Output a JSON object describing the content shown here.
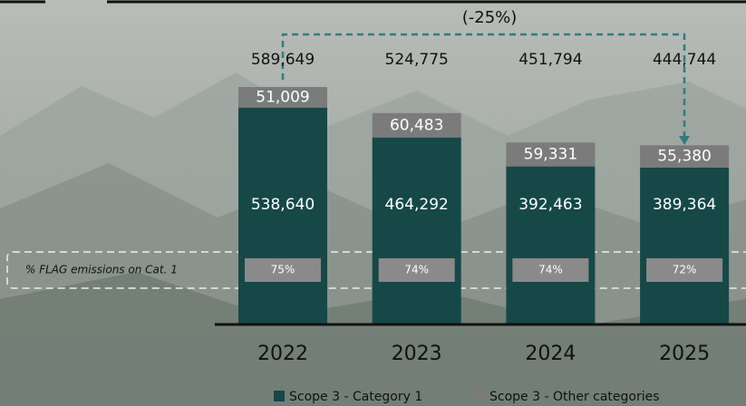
{
  "chart_data": {
    "type": "stacked-bar",
    "annotation": "(-25%)",
    "categories": [
      "2022",
      "2023",
      "2024",
      "2025"
    ],
    "series": [
      {
        "name": "Scope 3 - Category 1",
        "color": "#164848",
        "values": [
          538640,
          464292,
          392463,
          389364
        ],
        "value_labels": [
          "538,640",
          "464,292",
          "392,463",
          "389,364"
        ]
      },
      {
        "name": "Scope 3 - Other categories",
        "color": "#7b7b7b",
        "values": [
          51009,
          60483,
          59331,
          55380
        ],
        "value_labels": [
          "51,009",
          "60,483",
          "59,331",
          "55,380"
        ]
      }
    ],
    "totals": {
      "values": [
        589649,
        524775,
        451794,
        444744
      ],
      "value_labels": [
        "589,649",
        "524,775",
        "451,794",
        "444,744"
      ]
    },
    "flag_share": {
      "label": "% FLAG emissions on Cat. 1",
      "values": [
        75,
        74,
        74,
        72
      ],
      "value_labels": [
        "75%",
        "74%",
        "74%",
        "72%"
      ]
    }
  }
}
